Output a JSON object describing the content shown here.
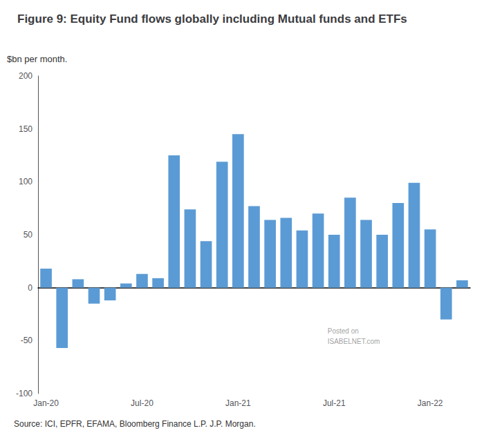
{
  "chart_data": {
    "type": "bar",
    "title": "Figure 9: Equity Fund flows globally including Mutual funds and ETFs",
    "ylabel": "$bn per month.",
    "source": "Source: ICI, EPFR, EFAMA, Bloomberg Finance L.P. J.P. Morgan.",
    "annotations": [
      "Posted on\nISABELNET.com"
    ],
    "categories": [
      "Jan-20",
      null,
      null,
      null,
      null,
      null,
      "Jul-20",
      null,
      null,
      null,
      null,
      null,
      "Jan-21",
      null,
      null,
      null,
      null,
      null,
      "Jul-21",
      null,
      null,
      null,
      null,
      null,
      "Jan-22",
      null,
      null
    ],
    "values": [
      18,
      -57,
      8,
      -15,
      -12,
      4,
      13,
      9,
      125,
      74,
      44,
      119,
      145,
      77,
      64,
      66,
      54,
      70,
      50,
      85,
      64,
      50,
      80,
      99,
      55,
      -30,
      7
    ],
    "color": "#5B9BD5",
    "ylim": [
      -100,
      200
    ],
    "yticks": [
      -100,
      -50,
      0,
      50,
      100,
      150,
      200
    ],
    "grid": false
  }
}
